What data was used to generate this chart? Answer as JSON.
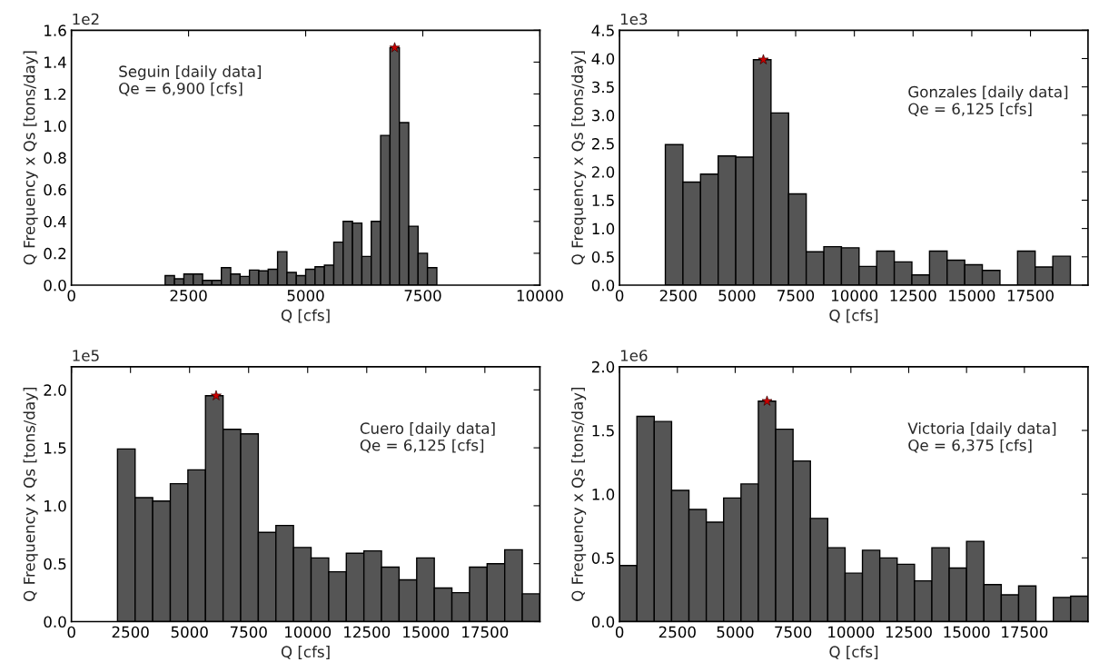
{
  "chart_data": [
    {
      "type": "histogram",
      "xlabel": "Q [cfs]",
      "ylabel": "Q Frequency x Qs [tons/day]",
      "annotations": [
        "1e2",
        "Seguin [daily data]\nQe = 6,900 [cfs]"
      ],
      "xlim": [
        0,
        10000
      ],
      "xticks": [
        0,
        2500,
        5000,
        7500,
        10000
      ],
      "ylim": [
        0,
        1.6
      ],
      "yticks": [
        {
          "value": 0,
          "label": "0.0"
        },
        0.2,
        0.4,
        0.6,
        0.8,
        {
          "value": 1,
          "label": "1.0"
        },
        1.2,
        1.4,
        1.6
      ],
      "grid": false,
      "series": [
        {
          "color": "#555555",
          "bins": [
            2000,
            2200,
            2400,
            2600,
            2800,
            3000,
            3200,
            3400,
            3600,
            3800,
            4000,
            4200,
            4400,
            4600,
            4800,
            5000,
            5200,
            5400,
            5600,
            5800,
            6000,
            6200,
            6400,
            6600,
            6800,
            7000,
            7200,
            7400,
            7600,
            7800
          ],
          "values": [
            0.06,
            0.04,
            0.07,
            0.07,
            0.03,
            0.03,
            0.11,
            0.07,
            0.055,
            0.095,
            0.09,
            0.1,
            0.21,
            0.08,
            0.06,
            0.1,
            0.115,
            0.125,
            0.27,
            0.4,
            0.39,
            0.18,
            0.4,
            0.94,
            1.49,
            1.02,
            0.37,
            0.2,
            0.11
          ]
        },
        {
          "type": "scatter",
          "marker": "star",
          "color": "#cc0000",
          "x": [
            6900
          ],
          "values": [
            1.49
          ]
        }
      ]
    },
    {
      "type": "histogram",
      "xlabel": "Q [cfs]",
      "ylabel": "Q Frequency x Qs [tons/day]",
      "annotations": [
        "1e3",
        "Gonzales [daily data]\nQe = 6,125 [cfs]"
      ],
      "xlim": [
        0,
        19950
      ],
      "xticks": [
        0,
        2500,
        5000,
        7500,
        10000,
        12500,
        15000,
        17500
      ],
      "ylim": [
        0,
        4.5
      ],
      "yticks": [
        {
          "value": 0,
          "label": "0.0"
        },
        0.5,
        {
          "value": 1,
          "label": "1.0"
        },
        1.5,
        {
          "value": 2,
          "label": "2.0"
        },
        2.5,
        {
          "value": 3,
          "label": "3.0"
        },
        3.5,
        {
          "value": 4,
          "label": "4.0"
        },
        4.5
      ],
      "grid": false,
      "series": [
        {
          "color": "#555555",
          "bins": [
            1950,
            2700,
            3450,
            4200,
            4950,
            5700,
            6450,
            7200,
            7950,
            8700,
            9450,
            10200,
            10950,
            11700,
            12450,
            13200,
            13950,
            14700,
            15450,
            16200,
            16950,
            17700,
            18450,
            19200
          ],
          "values": [
            2.48,
            1.82,
            1.96,
            2.28,
            2.26,
            3.98,
            3.04,
            1.61,
            0.59,
            0.68,
            0.66,
            0.33,
            0.6,
            0.41,
            0.18,
            0.6,
            0.44,
            0.36,
            0.26,
            0,
            0.6,
            0.32,
            0.51
          ]
        },
        {
          "type": "scatter",
          "marker": "star",
          "color": "#cc0000",
          "x": [
            6125
          ],
          "values": [
            3.98
          ]
        }
      ]
    },
    {
      "type": "histogram",
      "xlabel": "Q [cfs]",
      "ylabel": "Q Frequency x Qs [tons/day]",
      "annotations": [
        "1e5",
        "Cuero [daily data]\nQe = 6,125 [cfs]"
      ],
      "xlim": [
        0,
        19830
      ],
      "xticks": [
        0,
        2500,
        5000,
        7500,
        10000,
        12500,
        15000,
        17500
      ],
      "ylim": [
        0,
        2.2
      ],
      "yticks": [
        {
          "value": 0,
          "label": "0.0"
        },
        0.5,
        {
          "value": 1,
          "label": "1.0"
        },
        1.5,
        {
          "value": 2,
          "label": "2.0"
        }
      ],
      "grid": false,
      "series": [
        {
          "color": "#555555",
          "bins": [
            1950,
            2695,
            3440,
            4185,
            4930,
            5675,
            6420,
            7165,
            7910,
            8655,
            9400,
            10145,
            10890,
            11635,
            12380,
            13125,
            13870,
            14615,
            15360,
            16105,
            16850,
            17595,
            18340,
            19085,
            19830
          ],
          "values": [
            1.49,
            1.07,
            1.04,
            1.19,
            1.31,
            1.95,
            1.66,
            1.62,
            0.77,
            0.83,
            0.64,
            0.55,
            0.43,
            0.59,
            0.61,
            0.47,
            0.36,
            0.55,
            0.29,
            0.25,
            0.47,
            0.5,
            0.62,
            0.24
          ]
        },
        {
          "type": "scatter",
          "marker": "star",
          "color": "#cc0000",
          "x": [
            6125
          ],
          "values": [
            1.95
          ]
        }
      ]
    },
    {
      "type": "histogram",
      "xlabel": "Q [cfs]",
      "ylabel": "Q Frequency x Qs [tons/day]",
      "annotations": [
        "1e6",
        "Victoria [daily data]\nQe = 6,375 [cfs]"
      ],
      "xlim": [
        0,
        20250
      ],
      "xticks": [
        0,
        2500,
        5000,
        7500,
        10000,
        12500,
        15000,
        17500
      ],
      "ylim": [
        0,
        2.0
      ],
      "yticks": [
        {
          "value": 0,
          "label": "0.0"
        },
        0.5,
        {
          "value": 1,
          "label": "1.0"
        },
        1.5,
        {
          "value": 2,
          "label": "2.0"
        }
      ],
      "grid": false,
      "series": [
        {
          "color": "#555555",
          "bins": [
            0,
            750,
            1500,
            2250,
            3000,
            3750,
            4500,
            5250,
            6000,
            6750,
            7500,
            8250,
            9000,
            9750,
            10500,
            11250,
            12000,
            12750,
            13500,
            14250,
            15000,
            15750,
            16500,
            17250,
            18000,
            18750,
            19500,
            20250
          ],
          "values": [
            0.44,
            1.61,
            1.57,
            1.03,
            0.88,
            0.78,
            0.97,
            1.08,
            1.73,
            1.51,
            1.26,
            0.81,
            0.58,
            0.38,
            0.56,
            0.5,
            0.45,
            0.32,
            0.58,
            0.42,
            0.63,
            0.29,
            0.21,
            0.28,
            0,
            0.19,
            0.2
          ]
        },
        {
          "type": "scatter",
          "marker": "star",
          "color": "#cc0000",
          "x": [
            6375
          ],
          "values": [
            1.73
          ]
        }
      ]
    }
  ]
}
